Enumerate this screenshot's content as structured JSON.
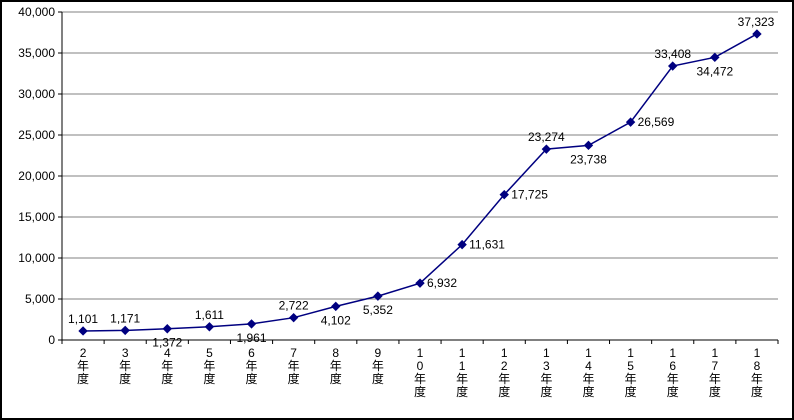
{
  "chart_data": {
    "type": "line",
    "title": "",
    "xlabel": "",
    "ylabel": "",
    "categories": [
      "2年度",
      "3年度",
      "4年度",
      "5年度",
      "6年度",
      "7年度",
      "8年度",
      "9年度",
      "10年度",
      "11年度",
      "12年度",
      "13年度",
      "14年度",
      "15年度",
      "16年度",
      "17年度",
      "18年度"
    ],
    "values": [
      1101,
      1171,
      1372,
      1611,
      1961,
      2722,
      4102,
      5352,
      6932,
      11631,
      17725,
      23274,
      23738,
      26569,
      33408,
      34472,
      37323
    ],
    "data_labels": [
      "1,101",
      "1,171",
      "1,372",
      "1,611",
      "1,961",
      "2,722",
      "4,102",
      "5,352",
      "6,932",
      "11,631",
      "17,725",
      "23,274",
      "23,738",
      "26,569",
      "33,408",
      "34,472",
      "37,323"
    ],
    "label_positions": [
      "above",
      "above",
      "below",
      "above",
      "below",
      "above",
      "below",
      "below",
      "right",
      "right",
      "right",
      "above",
      "below",
      "right",
      "above",
      "below",
      "above"
    ],
    "ylim": [
      0,
      40000
    ],
    "ytick_interval": 5000,
    "ytick_labels": [
      "0",
      "5,000",
      "10,000",
      "15,000",
      "20,000",
      "25,000",
      "30,000",
      "35,000",
      "40,000"
    ],
    "grid": true,
    "legend_position": "none",
    "colors": {
      "line": "#000080",
      "marker": "#000080",
      "grid": "#808080",
      "axis": "#000000",
      "background": "#ffffff"
    }
  }
}
